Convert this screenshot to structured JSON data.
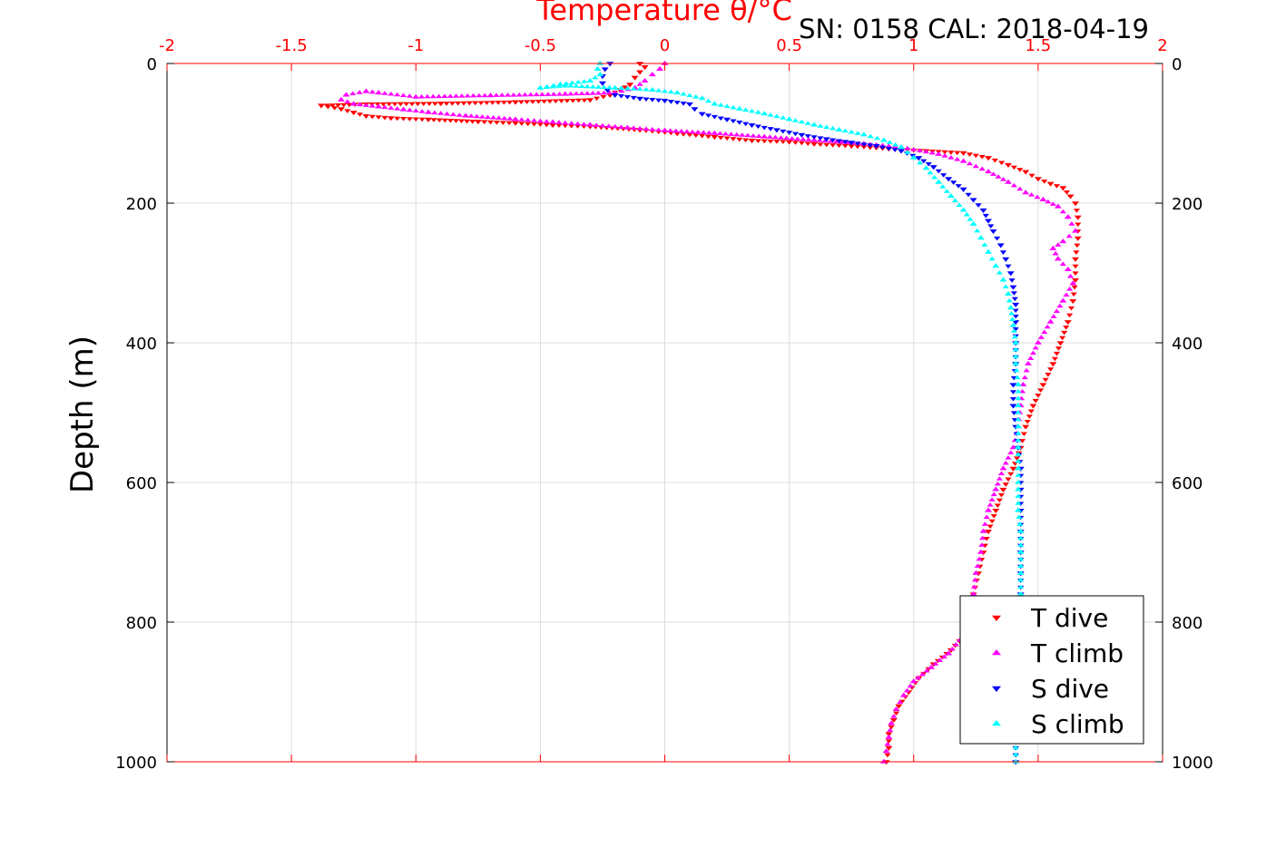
{
  "chart_data": {
    "type": "scatter",
    "title": "Temperature θ/°C",
    "annotation": "SN: 0158  CAL: 2018-04-19",
    "xlabel": "Temperature θ/°C",
    "ylabel": "Depth (m)",
    "xlim": [
      -2,
      2
    ],
    "ylim": [
      1000,
      0
    ],
    "y_reversed": true,
    "grid": true,
    "legend_position": "bottom-right",
    "x_ticks": [
      -2,
      -1.5,
      -1,
      -0.5,
      0,
      0.5,
      1,
      1.5,
      2
    ],
    "x_tick_labels": [
      "-2",
      "-1.5",
      "-1",
      "-0.5",
      "0",
      "0.5",
      "1",
      "1.5",
      "2"
    ],
    "y_ticks": [
      0,
      200,
      400,
      600,
      800,
      1000
    ],
    "y_tick_labels": [
      "0",
      "200",
      "400",
      "600",
      "800",
      "1000"
    ],
    "series": [
      {
        "name": "T dive",
        "color": "#ff0000",
        "marker": "triangle-down",
        "points": [
          [
            -0.1,
            0
          ],
          [
            -0.08,
            5
          ],
          [
            -0.1,
            12
          ],
          [
            -0.12,
            20
          ],
          [
            -0.14,
            30
          ],
          [
            -0.22,
            45
          ],
          [
            -0.3,
            52
          ],
          [
            -0.6,
            55
          ],
          [
            -0.9,
            57
          ],
          [
            -1.2,
            58
          ],
          [
            -1.38,
            60
          ],
          [
            -1.3,
            65
          ],
          [
            -1.25,
            70
          ],
          [
            -1.2,
            75
          ],
          [
            -1.1,
            78
          ],
          [
            -0.95,
            80
          ],
          [
            -0.75,
            83
          ],
          [
            -0.6,
            85
          ],
          [
            -0.45,
            88
          ],
          [
            -0.3,
            90
          ],
          [
            -0.1,
            95
          ],
          [
            0.05,
            100
          ],
          [
            0.2,
            105
          ],
          [
            0.35,
            110
          ],
          [
            0.5,
            112
          ],
          [
            0.6,
            115
          ],
          [
            0.75,
            118
          ],
          [
            0.9,
            122
          ],
          [
            1.05,
            125
          ],
          [
            1.2,
            128
          ],
          [
            1.3,
            135
          ],
          [
            1.38,
            145
          ],
          [
            1.45,
            155
          ],
          [
            1.5,
            165
          ],
          [
            1.55,
            172
          ],
          [
            1.6,
            178
          ],
          [
            1.63,
            190
          ],
          [
            1.65,
            200
          ],
          [
            1.66,
            220
          ],
          [
            1.66,
            250
          ],
          [
            1.65,
            280
          ],
          [
            1.65,
            310
          ],
          [
            1.64,
            340
          ],
          [
            1.62,
            370
          ],
          [
            1.59,
            400
          ],
          [
            1.56,
            430
          ],
          [
            1.52,
            460
          ],
          [
            1.48,
            490
          ],
          [
            1.45,
            520
          ],
          [
            1.43,
            550
          ],
          [
            1.4,
            580
          ],
          [
            1.36,
            610
          ],
          [
            1.33,
            640
          ],
          [
            1.3,
            670
          ],
          [
            1.28,
            700
          ],
          [
            1.26,
            730
          ],
          [
            1.24,
            760
          ],
          [
            1.22,
            790
          ],
          [
            1.2,
            820
          ],
          [
            1.15,
            840
          ],
          [
            1.08,
            860
          ],
          [
            1.02,
            880
          ],
          [
            0.98,
            900
          ],
          [
            0.94,
            920
          ],
          [
            0.92,
            940
          ],
          [
            0.9,
            960
          ],
          [
            0.9,
            980
          ],
          [
            0.89,
            1000
          ]
        ]
      },
      {
        "name": "T climb",
        "color": "#ff00ff",
        "marker": "triangle-up",
        "points": [
          [
            0.0,
            0
          ],
          [
            -0.02,
            8
          ],
          [
            -0.05,
            16
          ],
          [
            -0.08,
            25
          ],
          [
            -0.12,
            35
          ],
          [
            -0.2,
            42
          ],
          [
            -0.4,
            44
          ],
          [
            -0.7,
            46
          ],
          [
            -1.0,
            48
          ],
          [
            -1.15,
            42
          ],
          [
            -1.2,
            40
          ],
          [
            -1.28,
            45
          ],
          [
            -1.3,
            52
          ],
          [
            -1.25,
            58
          ],
          [
            -1.15,
            62
          ],
          [
            -1.05,
            66
          ],
          [
            -0.95,
            70
          ],
          [
            -0.8,
            75
          ],
          [
            -0.6,
            80
          ],
          [
            -0.45,
            84
          ],
          [
            -0.3,
            88
          ],
          [
            -0.15,
            92
          ],
          [
            0.0,
            96
          ],
          [
            0.2,
            100
          ],
          [
            0.4,
            105
          ],
          [
            0.6,
            110
          ],
          [
            0.8,
            115
          ],
          [
            0.95,
            120
          ],
          [
            1.1,
            130
          ],
          [
            1.2,
            140
          ],
          [
            1.3,
            155
          ],
          [
            1.38,
            170
          ],
          [
            1.45,
            185
          ],
          [
            1.52,
            195
          ],
          [
            1.58,
            205
          ],
          [
            1.62,
            220
          ],
          [
            1.65,
            240
          ],
          [
            1.6,
            255
          ],
          [
            1.56,
            265
          ],
          [
            1.58,
            280
          ],
          [
            1.62,
            295
          ],
          [
            1.64,
            315
          ],
          [
            1.6,
            340
          ],
          [
            1.55,
            370
          ],
          [
            1.5,
            400
          ],
          [
            1.46,
            430
          ],
          [
            1.44,
            460
          ],
          [
            1.43,
            490
          ],
          [
            1.42,
            520
          ],
          [
            1.4,
            550
          ],
          [
            1.36,
            580
          ],
          [
            1.33,
            610
          ],
          [
            1.3,
            640
          ],
          [
            1.28,
            670
          ],
          [
            1.27,
            700
          ],
          [
            1.25,
            730
          ],
          [
            1.24,
            760
          ],
          [
            1.22,
            790
          ],
          [
            1.2,
            820
          ],
          [
            1.14,
            845
          ],
          [
            1.07,
            865
          ],
          [
            1.0,
            885
          ],
          [
            0.96,
            905
          ],
          [
            0.93,
            925
          ],
          [
            0.91,
            945
          ],
          [
            0.9,
            965
          ],
          [
            0.89,
            985
          ],
          [
            0.88,
            1000
          ]
        ]
      },
      {
        "name": "S dive",
        "color": "#0000ff",
        "marker": "triangle-down",
        "points": [
          [
            -0.22,
            0
          ],
          [
            -0.24,
            8
          ],
          [
            -0.25,
            18
          ],
          [
            -0.25,
            28
          ],
          [
            -0.23,
            38
          ],
          [
            -0.2,
            45
          ],
          [
            -0.1,
            50
          ],
          [
            0.0,
            53
          ],
          [
            0.1,
            58
          ],
          [
            0.12,
            65
          ],
          [
            0.15,
            72
          ],
          [
            0.25,
            80
          ],
          [
            0.35,
            88
          ],
          [
            0.45,
            95
          ],
          [
            0.55,
            102
          ],
          [
            0.65,
            108
          ],
          [
            0.75,
            113
          ],
          [
            0.85,
            118
          ],
          [
            0.95,
            125
          ],
          [
            1.02,
            135
          ],
          [
            1.08,
            148
          ],
          [
            1.14,
            165
          ],
          [
            1.2,
            180
          ],
          [
            1.24,
            195
          ],
          [
            1.28,
            210
          ],
          [
            1.3,
            225
          ],
          [
            1.32,
            240
          ],
          [
            1.35,
            260
          ],
          [
            1.37,
            280
          ],
          [
            1.39,
            300
          ],
          [
            1.4,
            320
          ],
          [
            1.41,
            345
          ],
          [
            1.41,
            370
          ],
          [
            1.41,
            400
          ],
          [
            1.41,
            430
          ],
          [
            1.4,
            460
          ],
          [
            1.4,
            490
          ],
          [
            1.41,
            520
          ],
          [
            1.42,
            550
          ],
          [
            1.43,
            580
          ],
          [
            1.43,
            610
          ],
          [
            1.43,
            640
          ],
          [
            1.43,
            670
          ],
          [
            1.43,
            700
          ],
          [
            1.43,
            730
          ],
          [
            1.43,
            760
          ],
          [
            1.43,
            790
          ],
          [
            1.42,
            820
          ],
          [
            1.42,
            850
          ],
          [
            1.41,
            880
          ],
          [
            1.41,
            910
          ],
          [
            1.41,
            940
          ],
          [
            1.41,
            970
          ],
          [
            1.41,
            1000
          ]
        ]
      },
      {
        "name": "S climb",
        "color": "#00ffff",
        "marker": "triangle-up",
        "points": [
          [
            -0.26,
            0
          ],
          [
            -0.27,
            8
          ],
          [
            -0.26,
            16
          ],
          [
            -0.3,
            25
          ],
          [
            -0.42,
            30
          ],
          [
            -0.5,
            35
          ],
          [
            -0.4,
            32
          ],
          [
            -0.2,
            35
          ],
          [
            -0.05,
            38
          ],
          [
            0.05,
            42
          ],
          [
            0.15,
            50
          ],
          [
            0.2,
            58
          ],
          [
            0.3,
            65
          ],
          [
            0.4,
            72
          ],
          [
            0.5,
            80
          ],
          [
            0.6,
            88
          ],
          [
            0.7,
            95
          ],
          [
            0.8,
            102
          ],
          [
            0.88,
            110
          ],
          [
            0.95,
            120
          ],
          [
            1.0,
            135
          ],
          [
            1.05,
            150
          ],
          [
            1.1,
            170
          ],
          [
            1.15,
            190
          ],
          [
            1.2,
            210
          ],
          [
            1.24,
            230
          ],
          [
            1.27,
            250
          ],
          [
            1.3,
            270
          ],
          [
            1.33,
            290
          ],
          [
            1.36,
            310
          ],
          [
            1.38,
            330
          ],
          [
            1.39,
            350
          ],
          [
            1.4,
            375
          ],
          [
            1.41,
            400
          ],
          [
            1.41,
            430
          ],
          [
            1.42,
            460
          ],
          [
            1.42,
            490
          ],
          [
            1.42,
            520
          ],
          [
            1.42,
            550
          ],
          [
            1.42,
            580
          ],
          [
            1.42,
            610
          ],
          [
            1.42,
            640
          ],
          [
            1.43,
            670
          ],
          [
            1.43,
            700
          ],
          [
            1.43,
            730
          ],
          [
            1.43,
            760
          ],
          [
            1.42,
            790
          ],
          [
            1.42,
            820
          ],
          [
            1.41,
            850
          ],
          [
            1.41,
            880
          ],
          [
            1.41,
            910
          ],
          [
            1.41,
            940
          ],
          [
            1.41,
            970
          ],
          [
            1.41,
            1000
          ]
        ]
      }
    ]
  }
}
